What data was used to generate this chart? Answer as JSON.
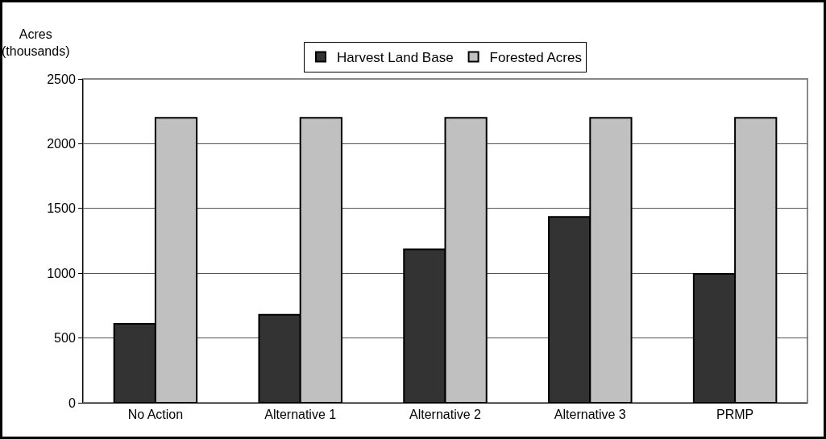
{
  "chart_data": {
    "type": "bar",
    "ylabel": "Acres\n(thousands)",
    "categories": [
      "No Action",
      "Alternative 1",
      "Alternative 2",
      "Alternative 3",
      "PRMP"
    ],
    "series": [
      {
        "name": "Harvest Land Base",
        "color": "#333333",
        "values": [
          610,
          680,
          1185,
          1435,
          995
        ]
      },
      {
        "name": "Forested Acres",
        "color": "#c0c0c0",
        "values": [
          2200,
          2200,
          2200,
          2200,
          2200
        ]
      }
    ],
    "ylim": [
      0,
      2500
    ],
    "yticks": [
      0,
      500,
      1000,
      1500,
      2000,
      2500
    ],
    "grid": "y",
    "legend": "top"
  }
}
